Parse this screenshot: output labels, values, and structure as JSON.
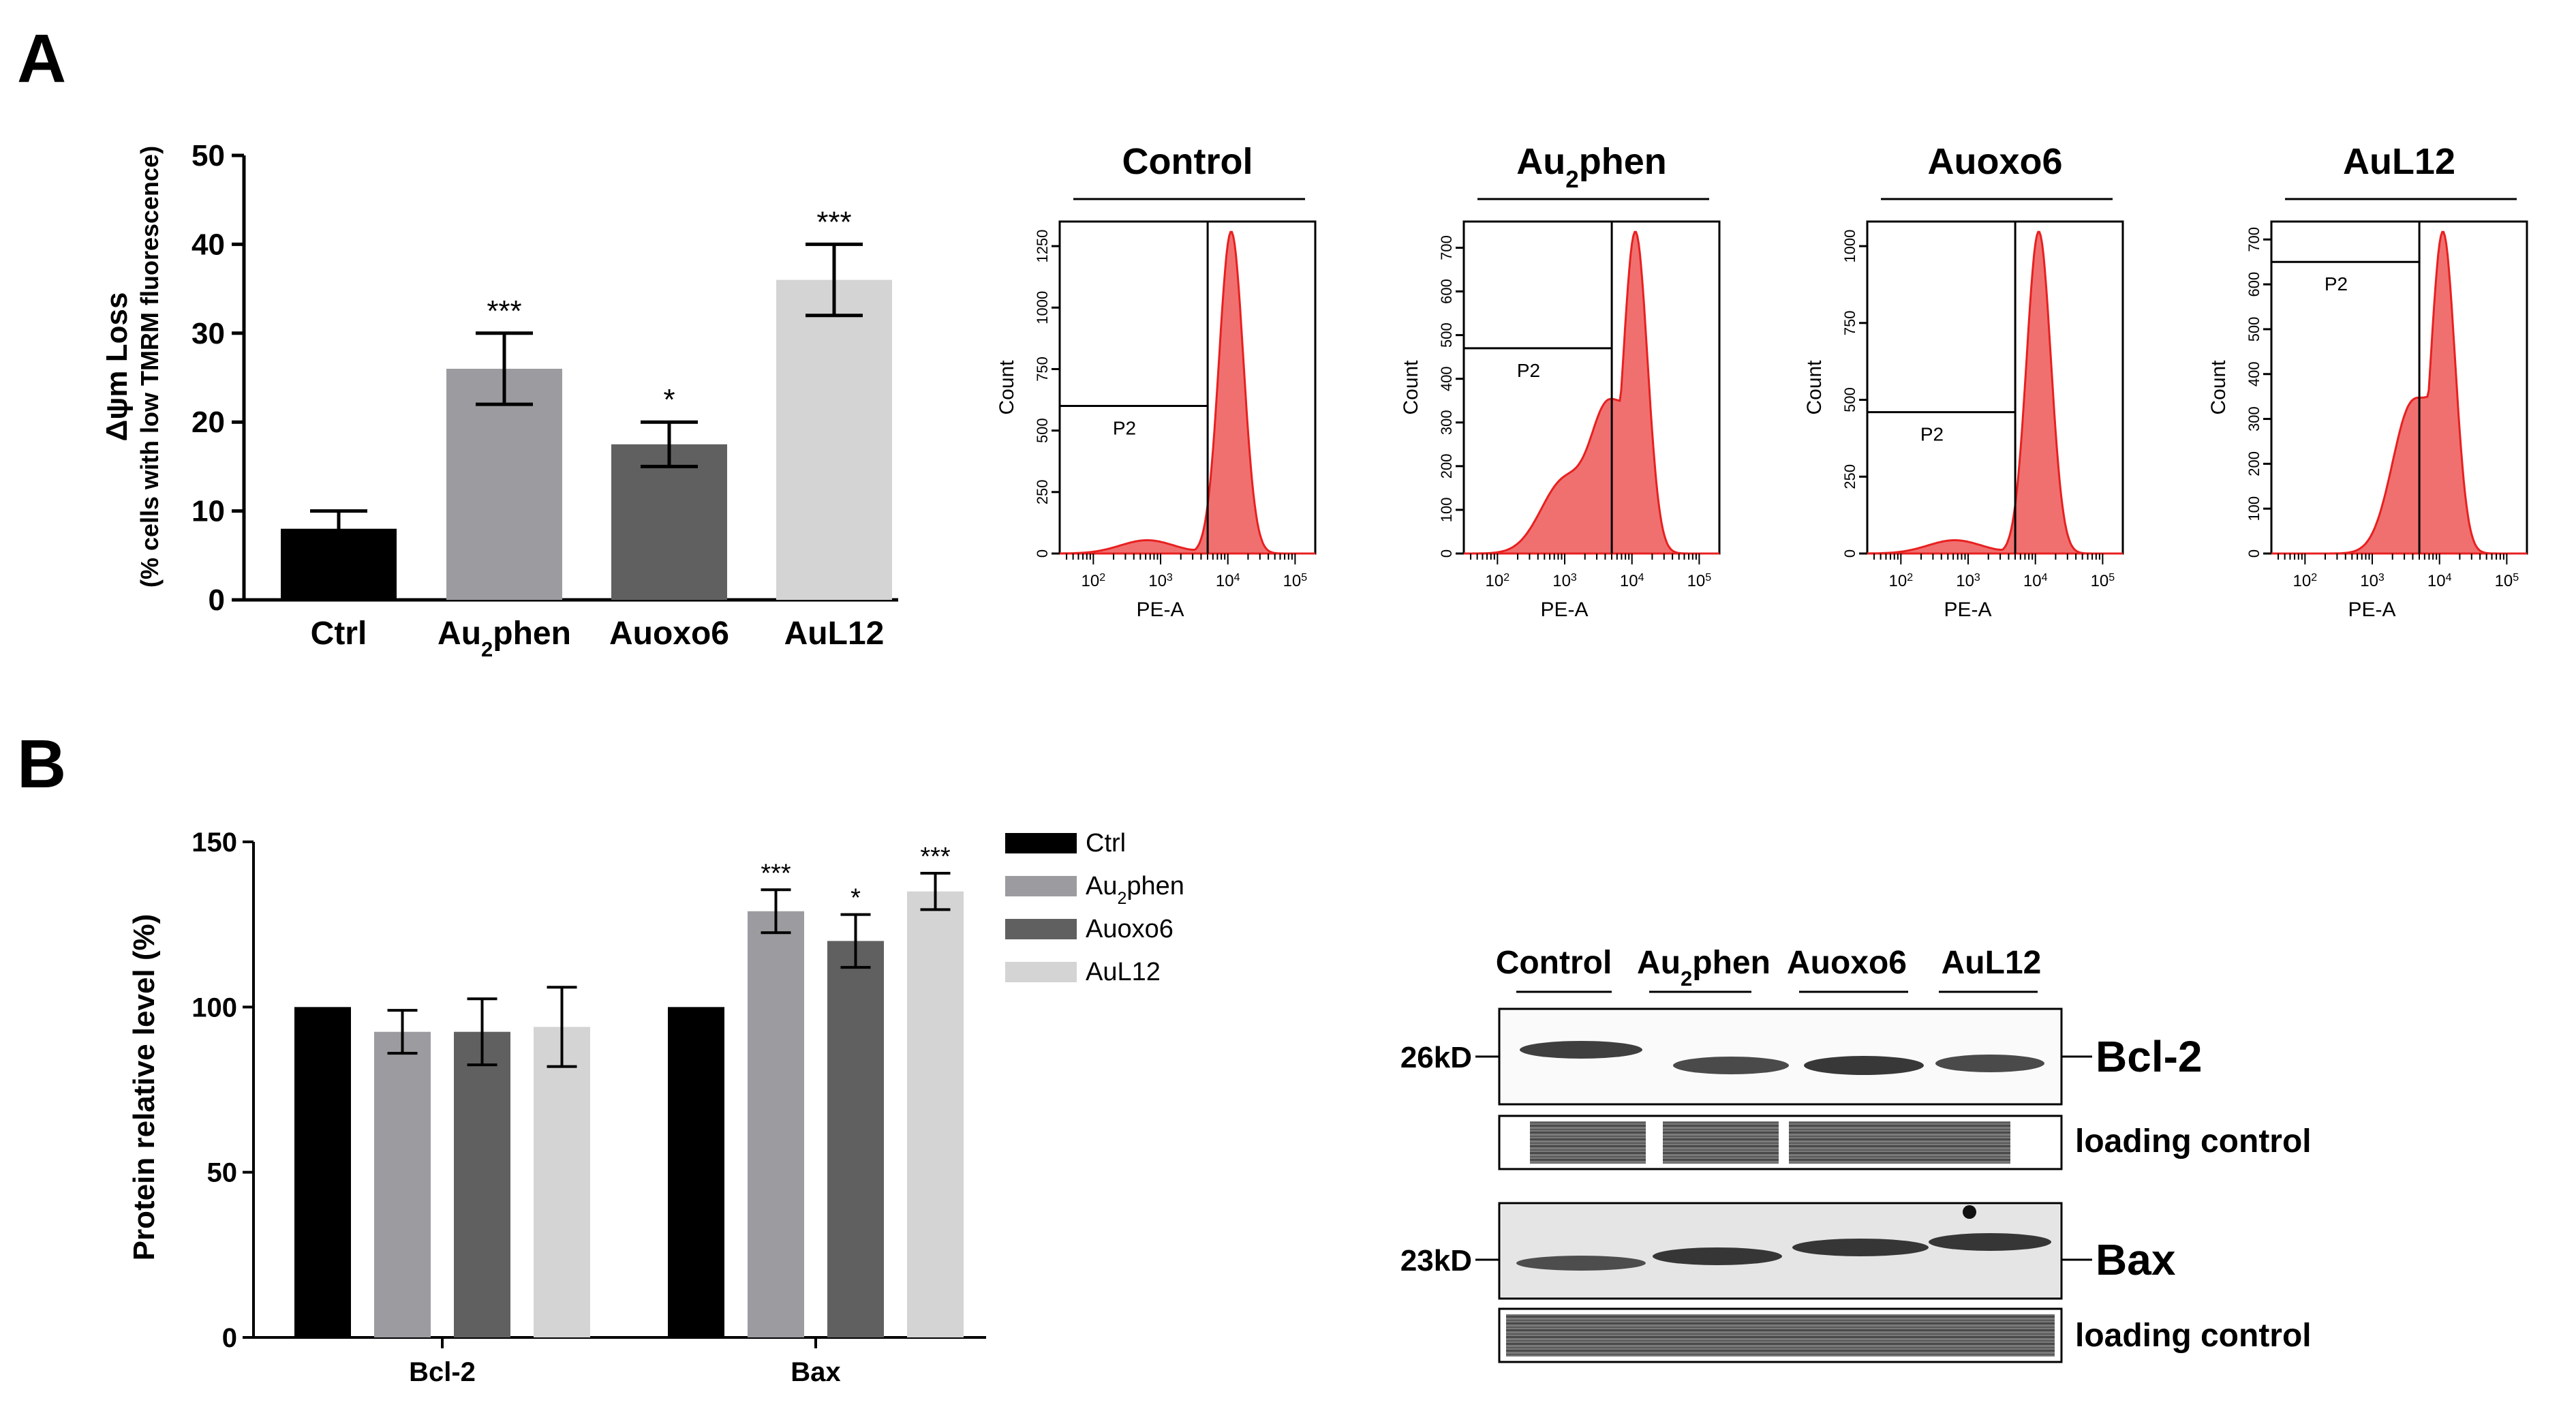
{
  "panel_labels": {
    "a": "A",
    "b": "B"
  },
  "colors": {
    "ctrl": "#000000",
    "au2phen": "#9c9ca0",
    "auoxo6": "#606060",
    "aul12": "#d4d4d4",
    "histogram": "#f07070",
    "histogram_line": "#e82020"
  },
  "chart_data": [
    {
      "type": "bar",
      "title": "",
      "ylabel_main": "Δψm Loss",
      "ylabel_sub": "(% cells with low TMRM fluorescence)",
      "xlabel": "",
      "ylim": [
        0,
        50
      ],
      "yticks": [
        "0",
        "10",
        "20",
        "30",
        "40",
        "50"
      ],
      "categories": [
        "Ctrl",
        "Au2phen",
        "Auoxo6",
        "AuL12"
      ],
      "category_labels": [
        {
          "main": "Ctrl",
          "sub": "",
          "tail": ""
        },
        {
          "main": "Au",
          "sub": "2",
          "tail": "phen"
        },
        {
          "main": "Auoxo6",
          "sub": "",
          "tail": ""
        },
        {
          "main": "AuL12",
          "sub": "",
          "tail": ""
        }
      ],
      "values": [
        8,
        26,
        17.5,
        36
      ],
      "errors": [
        2,
        4,
        2.5,
        4
      ],
      "significance": [
        "",
        "***",
        "*",
        "***"
      ]
    },
    {
      "type": "histogram",
      "panels": [
        {
          "title_main": "Control",
          "title_sub": "",
          "title_tail": "",
          "gate": "P2",
          "yticks": [
            "0",
            "250",
            "500",
            "750",
            "1000",
            "1250"
          ],
          "ymax": 1350,
          "gate_y": 600,
          "gate_x": 3.7
        },
        {
          "title_main": "Au",
          "title_sub": "2",
          "title_tail": "phen",
          "gate": "P2",
          "yticks": [
            "0",
            "100",
            "200",
            "300",
            "400",
            "500",
            "600",
            "700"
          ],
          "ymax": 760,
          "gate_y": 470,
          "gate_x": 3.7
        },
        {
          "title_main": "Auoxo6",
          "title_sub": "",
          "title_tail": "",
          "gate": "P2",
          "yticks": [
            "0",
            "250",
            "500",
            "750",
            "1000"
          ],
          "ymax": 1080,
          "gate_y": 460,
          "gate_x": 3.7
        },
        {
          "title_main": "AuL12",
          "title_sub": "",
          "title_tail": "",
          "gate": "P2",
          "yticks": [
            "0",
            "100",
            "200",
            "300",
            "400",
            "500",
            "600",
            "700"
          ],
          "ymax": 740,
          "gate_y": 650,
          "gate_x": 3.7
        }
      ],
      "ylabel": "Count",
      "xlabel": "PE-A",
      "xtick_exponents": [
        "2",
        "3",
        "4",
        "5"
      ],
      "xlim_log": [
        1.5,
        5.3
      ]
    },
    {
      "type": "bar",
      "title": "",
      "ylabel": "Protein relative level (%)",
      "ylim": [
        0,
        150
      ],
      "yticks": [
        "0",
        "50",
        "100",
        "150"
      ],
      "categories": [
        "Bcl-2",
        "Bax"
      ],
      "legend": [
        {
          "main": "Ctrl",
          "sub": "",
          "tail": ""
        },
        {
          "main": "Au",
          "sub": "2",
          "tail": "phen"
        },
        {
          "main": "Auoxo6",
          "sub": "",
          "tail": ""
        },
        {
          "main": "AuL12",
          "sub": "",
          "tail": ""
        }
      ],
      "legend_position": "top-right",
      "series": [
        {
          "name": "Ctrl",
          "values": [
            100,
            100
          ],
          "errors": [
            0,
            0
          ],
          "significance": [
            "",
            ""
          ]
        },
        {
          "name": "Au2phen",
          "values": [
            92.5,
            129
          ],
          "errors": [
            6.5,
            6.5
          ],
          "significance": [
            "",
            "***"
          ]
        },
        {
          "name": "Auoxo6",
          "values": [
            92.5,
            120
          ],
          "errors": [
            10,
            8
          ],
          "significance": [
            "",
            "*"
          ]
        },
        {
          "name": "AuL12",
          "values": [
            94,
            135
          ],
          "errors": [
            12,
            5.5
          ],
          "significance": [
            "",
            "***"
          ]
        }
      ]
    }
  ],
  "western_blot": {
    "lanes": [
      {
        "main": "Control",
        "sub": "",
        "tail": ""
      },
      {
        "main": "Au",
        "sub": "2",
        "tail": "phen"
      },
      {
        "main": "Auoxo6",
        "sub": "",
        "tail": ""
      },
      {
        "main": "AuL12",
        "sub": "",
        "tail": ""
      }
    ],
    "markers": [
      "26kD",
      "23kD"
    ],
    "band_labels": [
      "Bcl-2",
      "loading control",
      "Bax",
      "loading control"
    ]
  }
}
